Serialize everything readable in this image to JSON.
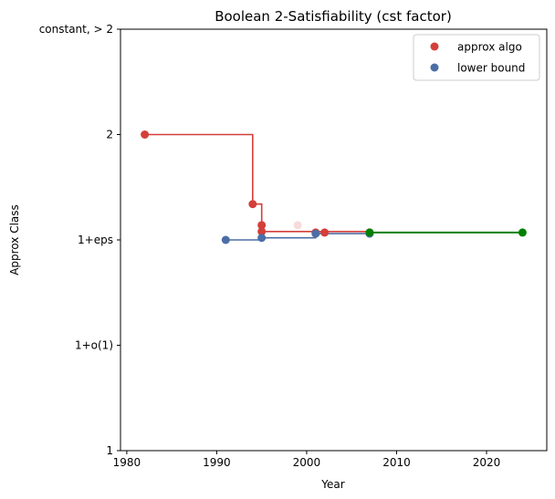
{
  "chart_data": {
    "type": "scatter",
    "title": "Boolean 2-Satisfiability (cst factor)",
    "xlabel": "Year",
    "ylabel": "Approx Class",
    "xlim": [
      1979.3,
      2026.7
    ],
    "ylim": [
      1.0,
      3.0
    ],
    "x_ticks": [
      1980,
      1990,
      2000,
      2010,
      2020
    ],
    "y_ticks": [
      {
        "value": 1.0,
        "label": "1"
      },
      {
        "value": 1.5,
        "label": "1+o(1)"
      },
      {
        "value": 2.0,
        "label": "1+eps"
      },
      {
        "value": 2.5,
        "label": "2"
      },
      {
        "value": 3.0,
        "label": "constant, > 2"
      }
    ],
    "grid": false,
    "legend_position": "top-right",
    "colors": {
      "approx": "#d43f3a",
      "lower": "#4c6ea6",
      "match": "#008000"
    },
    "series": [
      {
        "name": "approx algo",
        "role": "approx",
        "points": [
          {
            "x": 1982,
            "y": 2.5
          },
          {
            "x": 1994,
            "y": 2.17
          },
          {
            "x": 1995,
            "y": 2.07
          },
          {
            "x": 1995,
            "y": 2.04
          },
          {
            "x": 1999,
            "y": 2.07,
            "faded": true
          },
          {
            "x": 2001,
            "y": 2.035
          },
          {
            "x": 2002,
            "y": 2.035
          },
          {
            "x": 2007,
            "y": 2.035
          }
        ],
        "step": [
          [
            1982,
            2.5
          ],
          [
            1994,
            2.5
          ],
          [
            1994,
            2.17
          ],
          [
            1995,
            2.17
          ],
          [
            1995,
            2.04
          ],
          [
            2007,
            2.04
          ]
        ]
      },
      {
        "name": "lower bound",
        "role": "lower",
        "points": [
          {
            "x": 1991,
            "y": 2.0
          },
          {
            "x": 1995,
            "y": 2.01
          },
          {
            "x": 2001,
            "y": 2.03
          },
          {
            "x": 2007,
            "y": 2.03
          }
        ],
        "step": [
          [
            1991,
            2.0
          ],
          [
            1995,
            2.0
          ],
          [
            1995,
            2.01
          ],
          [
            2001,
            2.01
          ],
          [
            2001,
            2.03
          ],
          [
            2007,
            2.03
          ]
        ]
      },
      {
        "role": "match",
        "points": [
          {
            "x": 2007,
            "y": 2.035
          },
          {
            "x": 2024,
            "y": 2.035
          }
        ],
        "step": [
          [
            2007,
            2.035
          ],
          [
            2024,
            2.035
          ]
        ]
      }
    ]
  }
}
